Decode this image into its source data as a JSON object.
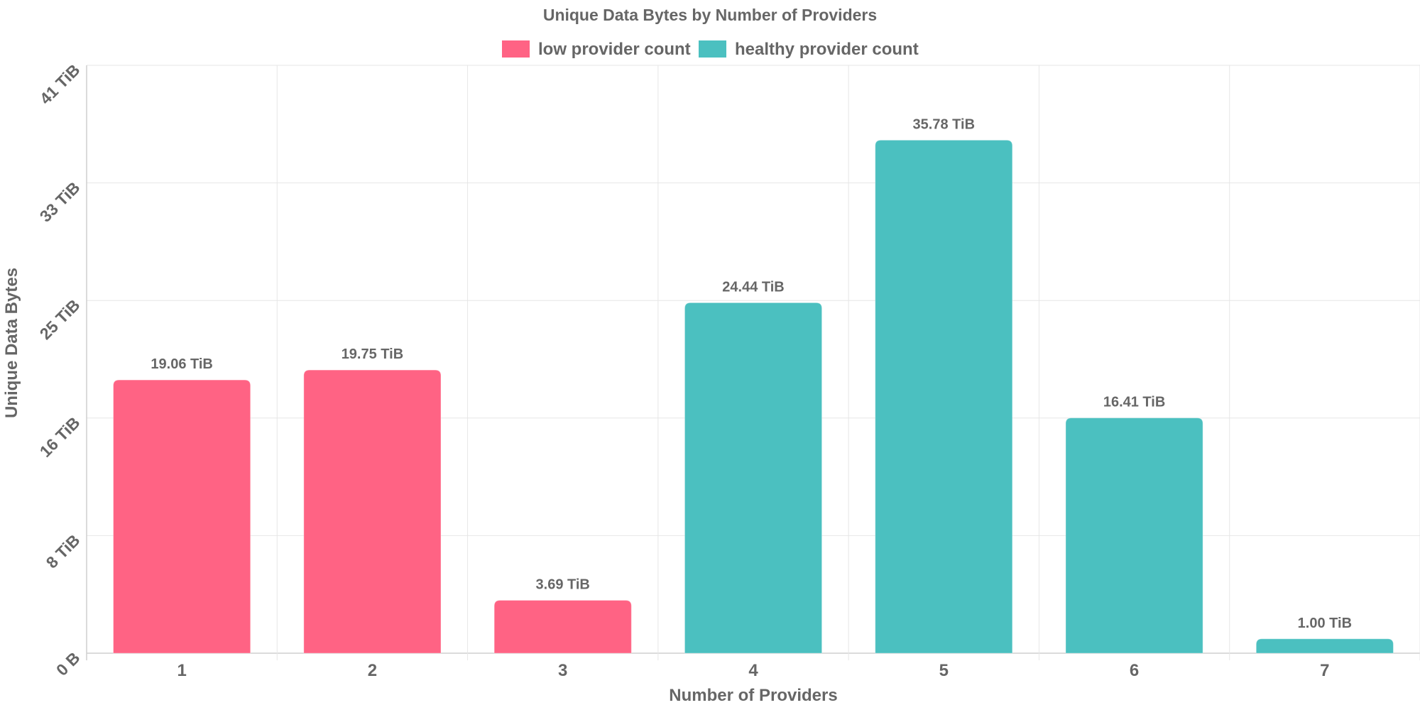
{
  "chart_data": {
    "type": "bar",
    "title": "Unique Data Bytes by Number of Providers",
    "xlabel": "Number of Providers",
    "ylabel": "Unique Data Bytes",
    "categories": [
      "1",
      "2",
      "3",
      "4",
      "5",
      "6",
      "7"
    ],
    "values": [
      19.06,
      19.75,
      3.69,
      24.44,
      35.78,
      16.41,
      1.0
    ],
    "value_unit": "TiB",
    "data_labels": [
      "19.06 TiB",
      "19.75 TiB",
      "3.69 TiB",
      "24.44 TiB",
      "35.78 TiB",
      "16.41 TiB",
      "1.00 TiB"
    ],
    "bar_series": [
      "low provider count",
      "low provider count",
      "low provider count",
      "healthy provider count",
      "healthy provider count",
      "healthy provider count",
      "healthy provider count"
    ],
    "legend": [
      {
        "label": "low provider count",
        "color": "#ff6384"
      },
      {
        "label": "healthy provider count",
        "color": "#4bc0c0"
      }
    ],
    "legend_position": "top",
    "y_ticks": [
      {
        "value": 0,
        "label": "0 B"
      },
      {
        "value": 8.2,
        "label": "8 TiB"
      },
      {
        "value": 16.4,
        "label": "16 TiB"
      },
      {
        "value": 24.6,
        "label": "25 TiB"
      },
      {
        "value": 32.8,
        "label": "33 TiB"
      },
      {
        "value": 41,
        "label": "41 TiB"
      }
    ],
    "ylim": [
      0,
      41
    ],
    "grid": true
  }
}
